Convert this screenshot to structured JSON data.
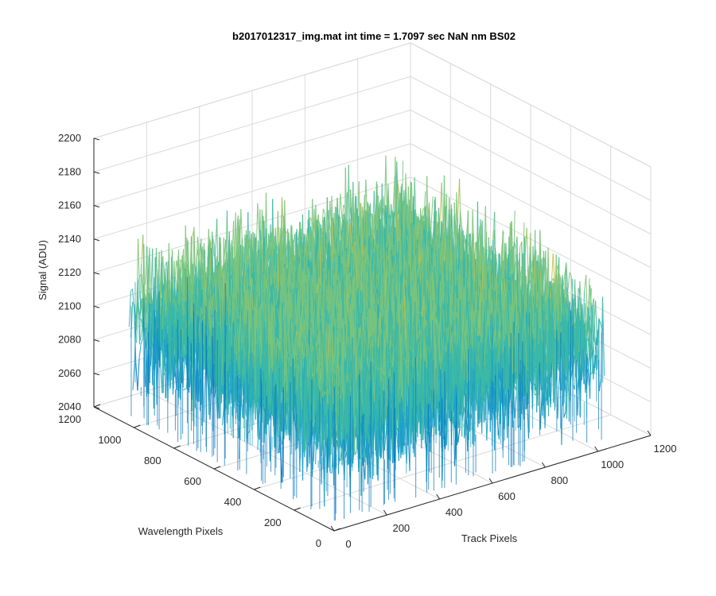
{
  "chart_data": {
    "type": "surface",
    "title": "b2017012317_img.mat int time = 1.7097 sec  NaN nm BS02",
    "xlabel": "Track Pixels",
    "ylabel": "Wavelength Pixels",
    "zlabel": "Signal (ADU)",
    "xlim": [
      0,
      1200
    ],
    "ylim": [
      0,
      1200
    ],
    "zlim": [
      2040,
      2200
    ],
    "x_ticks": [
      "0",
      "200",
      "400",
      "600",
      "800",
      "1000",
      "1200"
    ],
    "y_ticks": [
      "0",
      "200",
      "400",
      "600",
      "800",
      "1000",
      "1200"
    ],
    "z_ticks": [
      "2040",
      "2060",
      "2080",
      "2100",
      "2120",
      "2140",
      "2160",
      "2180",
      "2200"
    ],
    "data_extent": {
      "x": [
        0,
        1024
      ],
      "y": [
        0,
        1024
      ]
    },
    "mean_signal": 2105,
    "noise_range": [
      2045,
      2190
    ],
    "colormap": [
      "#0072bd",
      "#1a9ec9",
      "#3bb8a8",
      "#7cc47b",
      "#c4c04a",
      "#eebb3a"
    ],
    "grid": true
  }
}
